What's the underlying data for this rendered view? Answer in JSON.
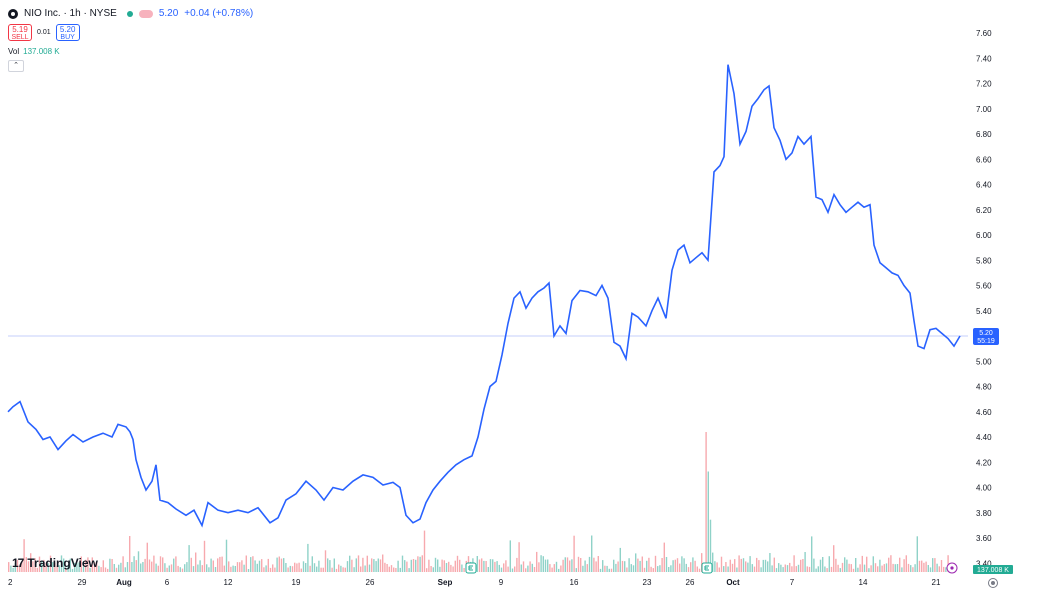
{
  "header": {
    "symbol": "NIO Inc. · 1h · NYSE",
    "last_price": "5.20",
    "change": "+0.04 (+0.78%)",
    "sell_price": "5.19",
    "sell_label": "SELL",
    "spread": "0.01",
    "buy_price": "5.20",
    "buy_label": "BUY",
    "vol_label": "Vol",
    "vol_value": "137.008 K",
    "collapse_glyph": "⌃"
  },
  "branding": {
    "logo_mark": "17",
    "logo_text": "TradingView"
  },
  "price_marker": {
    "price": "5.20",
    "countdown": "55:19"
  },
  "volume_marker": "137.008 K",
  "colors": {
    "line": "#2962ff",
    "volume_up": "#8fd2c8",
    "volume_down": "#f7a9ae",
    "price_line": "#c5cffb",
    "axis_text": "#131722"
  },
  "icons": {
    "settings": "gear-icon",
    "events": [
      "earnings-icon",
      "dividend-icon"
    ]
  },
  "chart_data": {
    "type": "line",
    "title": "NIO Inc. · 1h · NYSE",
    "ylim": [
      3.4,
      7.7
    ],
    "y_ticks": [
      "7.60",
      "7.40",
      "7.20",
      "7.00",
      "6.80",
      "6.60",
      "6.40",
      "6.20",
      "6.00",
      "5.80",
      "5.60",
      "5.40",
      "5.20",
      "5.00",
      "4.80",
      "4.60",
      "4.40",
      "4.20",
      "4.00",
      "3.80",
      "3.60",
      "3.40"
    ],
    "x_tick_labels": [
      "2",
      "29",
      "Aug",
      "6",
      "12",
      "19",
      "26",
      "Sep",
      "9",
      "16",
      "23",
      "26",
      "Oct",
      "7",
      "14",
      "21"
    ],
    "x_bold": [
      "Aug",
      "Sep",
      "Oct"
    ],
    "series": [
      {
        "points": [
          [
            0,
            4.6
          ],
          [
            5,
            4.64
          ],
          [
            12,
            4.68
          ],
          [
            20,
            4.52
          ],
          [
            28,
            4.46
          ],
          [
            35,
            4.38
          ],
          [
            42,
            4.4
          ],
          [
            50,
            4.3
          ],
          [
            58,
            4.37
          ],
          [
            65,
            4.42
          ],
          [
            75,
            4.36
          ],
          [
            85,
            4.4
          ],
          [
            95,
            4.43
          ],
          [
            104,
            4.4
          ],
          [
            110,
            4.5
          ],
          [
            118,
            4.48
          ],
          [
            122,
            4.44
          ],
          [
            125,
            4.38
          ],
          [
            128,
            4.22
          ],
          [
            133,
            4.08
          ],
          [
            138,
            3.98
          ],
          [
            144,
            4.05
          ],
          [
            148,
            4.18
          ],
          [
            152,
            3.9
          ],
          [
            160,
            3.88
          ],
          [
            168,
            3.83
          ],
          [
            178,
            3.78
          ],
          [
            186,
            3.82
          ],
          [
            194,
            3.7
          ],
          [
            200,
            3.88
          ],
          [
            210,
            3.82
          ],
          [
            220,
            3.8
          ],
          [
            230,
            3.82
          ],
          [
            240,
            3.8
          ],
          [
            250,
            3.84
          ],
          [
            262,
            3.72
          ],
          [
            270,
            3.76
          ],
          [
            278,
            3.9
          ],
          [
            288,
            3.95
          ],
          [
            298,
            4.05
          ],
          [
            308,
            3.98
          ],
          [
            316,
            3.9
          ],
          [
            325,
            4.0
          ],
          [
            335,
            3.98
          ],
          [
            345,
            4.05
          ],
          [
            355,
            4.1
          ],
          [
            365,
            4.08
          ],
          [
            375,
            4.02
          ],
          [
            385,
            4.04
          ],
          [
            392,
            4.0
          ],
          [
            398,
            3.78
          ],
          [
            405,
            3.72
          ],
          [
            412,
            3.75
          ],
          [
            418,
            3.88
          ],
          [
            425,
            3.98
          ],
          [
            432,
            4.05
          ],
          [
            440,
            4.12
          ],
          [
            448,
            4.18
          ],
          [
            456,
            4.22
          ],
          [
            464,
            4.25
          ],
          [
            470,
            4.4
          ],
          [
            476,
            4.62
          ],
          [
            482,
            4.8
          ],
          [
            488,
            4.84
          ],
          [
            494,
            5.05
          ],
          [
            500,
            5.3
          ],
          [
            506,
            5.5
          ],
          [
            512,
            5.55
          ],
          [
            518,
            5.42
          ],
          [
            524,
            5.5
          ],
          [
            530,
            5.55
          ],
          [
            536,
            5.58
          ],
          [
            541,
            5.62
          ],
          [
            546,
            5.2
          ],
          [
            552,
            5.28
          ],
          [
            558,
            5.22
          ],
          [
            564,
            5.48
          ],
          [
            572,
            5.56
          ],
          [
            580,
            5.55
          ],
          [
            588,
            5.52
          ],
          [
            594,
            5.6
          ],
          [
            600,
            5.5
          ],
          [
            606,
            5.15
          ],
          [
            612,
            5.12
          ],
          [
            618,
            5.02
          ],
          [
            624,
            5.38
          ],
          [
            630,
            5.35
          ],
          [
            638,
            5.28
          ],
          [
            644,
            5.4
          ],
          [
            650,
            5.5
          ],
          [
            658,
            5.34
          ],
          [
            664,
            5.72
          ],
          [
            670,
            5.88
          ],
          [
            676,
            5.92
          ],
          [
            682,
            5.78
          ],
          [
            688,
            5.82
          ],
          [
            694,
            5.86
          ],
          [
            700,
            5.8
          ],
          [
            706,
            6.5
          ],
          [
            712,
            6.55
          ],
          [
            716,
            6.62
          ],
          [
            720,
            7.35
          ],
          [
            726,
            7.12
          ],
          [
            732,
            6.72
          ],
          [
            738,
            6.82
          ],
          [
            744,
            7.02
          ],
          [
            750,
            7.08
          ],
          [
            756,
            7.15
          ],
          [
            761,
            7.18
          ],
          [
            766,
            6.85
          ],
          [
            772,
            6.75
          ],
          [
            778,
            6.6
          ],
          [
            784,
            6.65
          ],
          [
            790,
            6.78
          ],
          [
            796,
            6.72
          ],
          [
            803,
            6.78
          ],
          [
            808,
            6.3
          ],
          [
            814,
            6.28
          ],
          [
            820,
            6.18
          ],
          [
            826,
            6.32
          ],
          [
            832,
            6.24
          ],
          [
            838,
            6.18
          ],
          [
            844,
            6.22
          ],
          [
            850,
            6.26
          ],
          [
            856,
            6.22
          ],
          [
            862,
            6.24
          ],
          [
            866,
            5.92
          ],
          [
            872,
            5.78
          ],
          [
            878,
            5.74
          ],
          [
            884,
            5.7
          ],
          [
            890,
            5.68
          ],
          [
            896,
            5.6
          ],
          [
            902,
            5.54
          ],
          [
            906,
            5.32
          ],
          [
            910,
            5.12
          ],
          [
            916,
            5.1
          ],
          [
            922,
            5.25
          ],
          [
            928,
            5.26
          ],
          [
            934,
            5.22
          ],
          [
            940,
            5.18
          ],
          [
            946,
            5.12
          ],
          [
            952,
            5.2
          ]
        ]
      }
    ],
    "volume_note": "volume histogram (qualitative), peak near 26 Sep"
  }
}
